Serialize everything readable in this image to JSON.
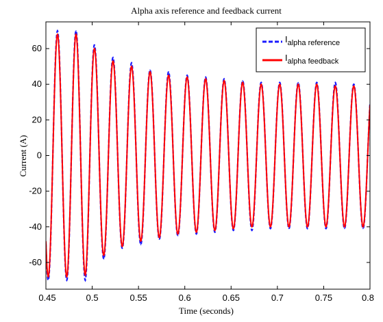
{
  "chart_data": {
    "type": "line",
    "title": "Alpha axis reference and feedback current",
    "xlabel": "Time (seconds)",
    "ylabel": "Current (A)",
    "xlim": [
      0.45,
      0.8
    ],
    "ylim": [
      -75,
      75
    ],
    "x_ticks": [
      "0.45",
      "0.5",
      "0.55",
      "0.6",
      "0.65",
      "0.7",
      "0.75",
      "0.8"
    ],
    "y_ticks": [
      "60",
      "40",
      "20",
      "0",
      "-20",
      "-40",
      "-60"
    ],
    "grid": false,
    "legend_position": "top-right",
    "frequency_hz": 50,
    "series": [
      {
        "label_main": "I",
        "label_sub": "alpha reference",
        "color": "#1a1aff",
        "style": "dashed",
        "peaks": [
          [
            0.4625,
            70
          ],
          [
            0.4725,
            -70
          ],
          [
            0.4825,
            70
          ],
          [
            0.4925,
            -70
          ],
          [
            0.5025,
            62
          ],
          [
            0.5125,
            -58
          ],
          [
            0.5225,
            55
          ],
          [
            0.5325,
            -52
          ],
          [
            0.5425,
            52
          ],
          [
            0.5525,
            -50
          ],
          [
            0.5625,
            48
          ],
          [
            0.5725,
            -47
          ],
          [
            0.5825,
            47
          ],
          [
            0.5925,
            -45
          ],
          [
            0.6025,
            45
          ],
          [
            0.6125,
            -44
          ],
          [
            0.6225,
            44
          ],
          [
            0.6325,
            -43
          ],
          [
            0.6425,
            43
          ],
          [
            0.6525,
            -42
          ],
          [
            0.6625,
            42
          ],
          [
            0.6725,
            -42
          ],
          [
            0.6825,
            41
          ],
          [
            0.6925,
            -41
          ],
          [
            0.7025,
            41
          ],
          [
            0.7125,
            -41
          ],
          [
            0.7225,
            41
          ],
          [
            0.7325,
            -41
          ],
          [
            0.7425,
            41
          ],
          [
            0.7525,
            -41
          ],
          [
            0.7625,
            41
          ],
          [
            0.7725,
            -41
          ],
          [
            0.7825,
            40
          ],
          [
            0.7925,
            -41
          ]
        ]
      },
      {
        "label_main": "I",
        "label_sub": "alpha feedback",
        "color": "#ff0000",
        "style": "solid",
        "peaks": [
          [
            0.4625,
            68
          ],
          [
            0.4725,
            -68
          ],
          [
            0.4825,
            68
          ],
          [
            0.4925,
            -67
          ],
          [
            0.5025,
            60
          ],
          [
            0.5125,
            -56
          ],
          [
            0.5225,
            53
          ],
          [
            0.5325,
            -51
          ],
          [
            0.5425,
            50
          ],
          [
            0.5525,
            -48
          ],
          [
            0.5625,
            47
          ],
          [
            0.5725,
            -46
          ],
          [
            0.5825,
            45
          ],
          [
            0.5925,
            -44
          ],
          [
            0.6025,
            44
          ],
          [
            0.6125,
            -43
          ],
          [
            0.6225,
            43
          ],
          [
            0.6325,
            -42
          ],
          [
            0.6425,
            42
          ],
          [
            0.6525,
            -41
          ],
          [
            0.6625,
            41
          ],
          [
            0.6725,
            -40
          ],
          [
            0.6825,
            40
          ],
          [
            0.6925,
            -40
          ],
          [
            0.7025,
            40
          ],
          [
            0.7125,
            -40
          ],
          [
            0.7225,
            40
          ],
          [
            0.7325,
            -40
          ],
          [
            0.7425,
            40
          ],
          [
            0.7525,
            -40
          ],
          [
            0.7625,
            39
          ],
          [
            0.7725,
            -40
          ],
          [
            0.7825,
            39
          ],
          [
            0.7925,
            -40
          ]
        ]
      }
    ]
  }
}
